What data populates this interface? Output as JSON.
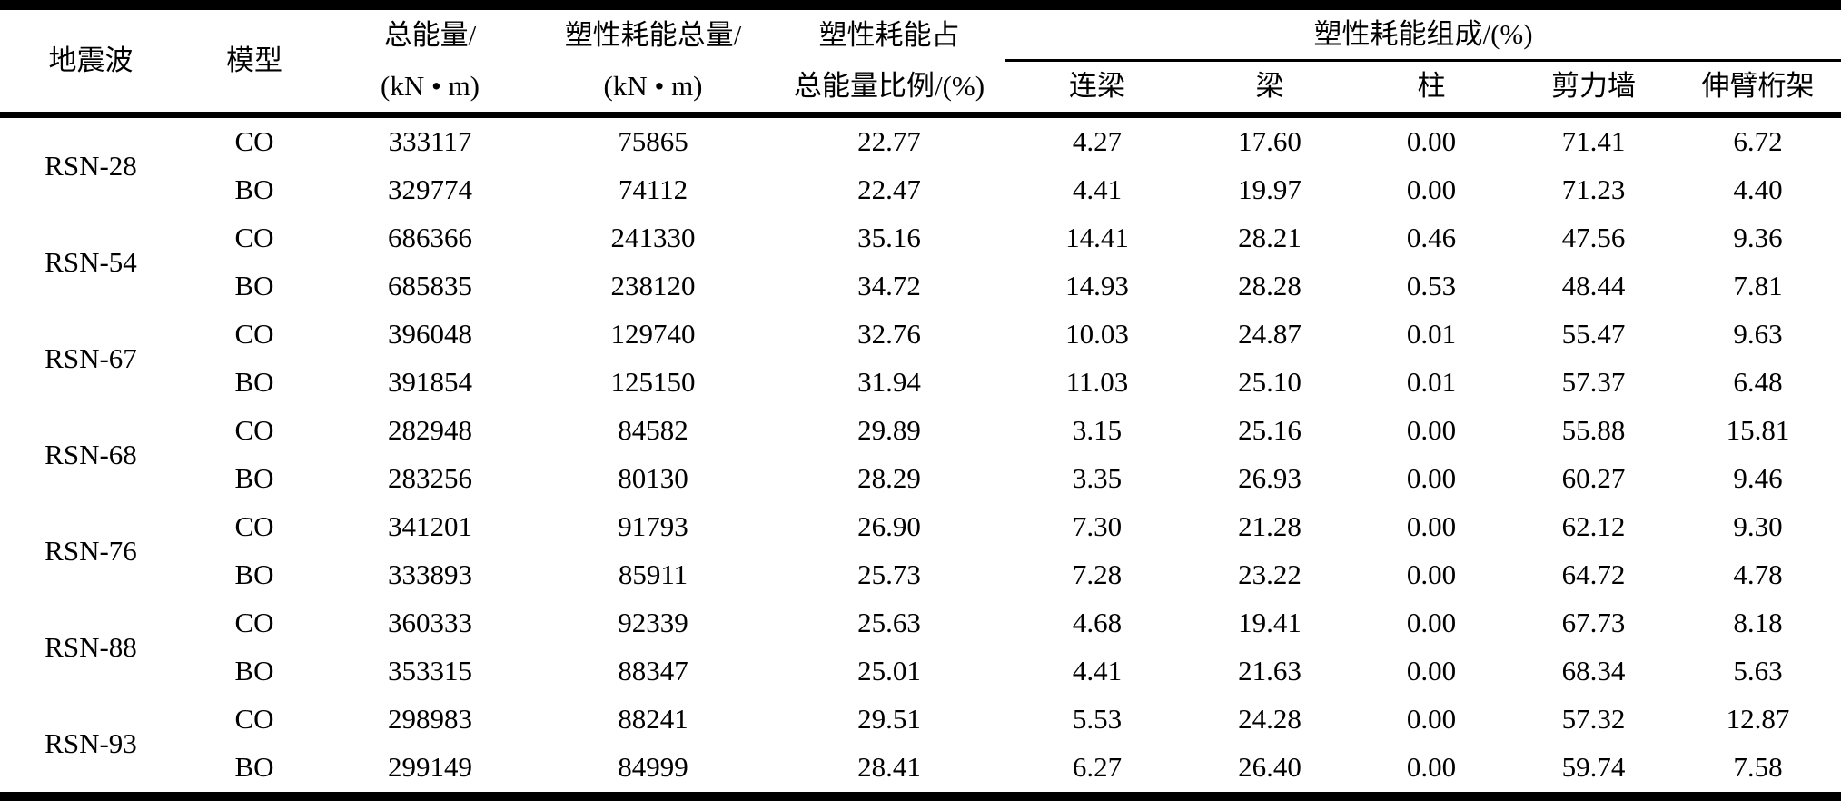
{
  "table": {
    "header": {
      "wave": "地震波",
      "model": "模型",
      "total_energy_line1": "总能量/",
      "total_energy_line2": "(kN • m)",
      "plastic_total_line1": "塑性耗能总量/",
      "plastic_total_line2": "(kN • m)",
      "ratio_line1": "塑性耗能占",
      "ratio_line2": "总能量比例/(%)",
      "composition_group": "塑性耗能组成/(%)",
      "sub_columns": [
        "连梁",
        "梁",
        "柱",
        "剪力墙",
        "伸臂桁架"
      ]
    },
    "groups": [
      {
        "wave": "RSN-28",
        "rows": [
          {
            "model": "CO",
            "total_energy": "333117",
            "plastic_total": "75865",
            "ratio": "22.77",
            "composition": [
              "4.27",
              "17.60",
              "0.00",
              "71.41",
              "6.72"
            ]
          },
          {
            "model": "BO",
            "total_energy": "329774",
            "plastic_total": "74112",
            "ratio": "22.47",
            "composition": [
              "4.41",
              "19.97",
              "0.00",
              "71.23",
              "4.40"
            ]
          }
        ]
      },
      {
        "wave": "RSN-54",
        "rows": [
          {
            "model": "CO",
            "total_energy": "686366",
            "plastic_total": "241330",
            "ratio": "35.16",
            "composition": [
              "14.41",
              "28.21",
              "0.46",
              "47.56",
              "9.36"
            ]
          },
          {
            "model": "BO",
            "total_energy": "685835",
            "plastic_total": "238120",
            "ratio": "34.72",
            "composition": [
              "14.93",
              "28.28",
              "0.53",
              "48.44",
              "7.81"
            ]
          }
        ]
      },
      {
        "wave": "RSN-67",
        "rows": [
          {
            "model": "CO",
            "total_energy": "396048",
            "plastic_total": "129740",
            "ratio": "32.76",
            "composition": [
              "10.03",
              "24.87",
              "0.01",
              "55.47",
              "9.63"
            ]
          },
          {
            "model": "BO",
            "total_energy": "391854",
            "plastic_total": "125150",
            "ratio": "31.94",
            "composition": [
              "11.03",
              "25.10",
              "0.01",
              "57.37",
              "6.48"
            ]
          }
        ]
      },
      {
        "wave": "RSN-68",
        "rows": [
          {
            "model": "CO",
            "total_energy": "282948",
            "plastic_total": "84582",
            "ratio": "29.89",
            "composition": [
              "3.15",
              "25.16",
              "0.00",
              "55.88",
              "15.81"
            ]
          },
          {
            "model": "BO",
            "total_energy": "283256",
            "plastic_total": "80130",
            "ratio": "28.29",
            "composition": [
              "3.35",
              "26.93",
              "0.00",
              "60.27",
              "9.46"
            ]
          }
        ]
      },
      {
        "wave": "RSN-76",
        "rows": [
          {
            "model": "CO",
            "total_energy": "341201",
            "plastic_total": "91793",
            "ratio": "26.90",
            "composition": [
              "7.30",
              "21.28",
              "0.00",
              "62.12",
              "9.30"
            ]
          },
          {
            "model": "BO",
            "total_energy": "333893",
            "plastic_total": "85911",
            "ratio": "25.73",
            "composition": [
              "7.28",
              "23.22",
              "0.00",
              "64.72",
              "4.78"
            ]
          }
        ]
      },
      {
        "wave": "RSN-88",
        "rows": [
          {
            "model": "CO",
            "total_energy": "360333",
            "plastic_total": "92339",
            "ratio": "25.63",
            "composition": [
              "4.68",
              "19.41",
              "0.00",
              "67.73",
              "8.18"
            ]
          },
          {
            "model": "BO",
            "total_energy": "353315",
            "plastic_total": "88347",
            "ratio": "25.01",
            "composition": [
              "4.41",
              "21.63",
              "0.00",
              "68.34",
              "5.63"
            ]
          }
        ]
      },
      {
        "wave": "RSN-93",
        "rows": [
          {
            "model": "CO",
            "total_energy": "298983",
            "plastic_total": "88241",
            "ratio": "29.51",
            "composition": [
              "5.53",
              "24.28",
              "0.00",
              "57.32",
              "12.87"
            ]
          },
          {
            "model": "BO",
            "total_energy": "299149",
            "plastic_total": "84999",
            "ratio": "28.41",
            "composition": [
              "6.27",
              "26.40",
              "0.00",
              "59.74",
              "7.58"
            ]
          }
        ]
      }
    ]
  }
}
